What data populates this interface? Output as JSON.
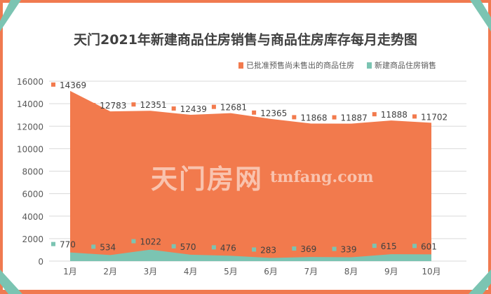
{
  "colors": {
    "orange": "#F27A4D",
    "green": "#7BC4B2",
    "border": "#F07A50",
    "grid": "#D9D9D9",
    "text": "#404040"
  },
  "chart_data": {
    "type": "area",
    "stacked": true,
    "title": "天门2021年新建商品住房销售与商品住房库存每月走势图",
    "categories": [
      "1月",
      "2月",
      "3月",
      "4月",
      "5月",
      "6月",
      "7月",
      "8月",
      "9月",
      "10月"
    ],
    "series": [
      {
        "name": "新建商品住房销售",
        "values": [
          770,
          534,
          1022,
          570,
          476,
          283,
          369,
          339,
          615,
          601
        ]
      },
      {
        "name": "已批准预售尚未售出的商品住房",
        "values": [
          14369,
          12783,
          12351,
          12439,
          12681,
          12365,
          11868,
          11887,
          11888,
          11702
        ]
      }
    ],
    "ylim": [
      0,
      16000
    ],
    "yticks": [
      "0",
      "2000",
      "4000",
      "6000",
      "8000",
      "10000",
      "12000",
      "14000",
      "16000"
    ],
    "grid": true,
    "legend": "top-right"
  },
  "watermark": {
    "cn": "天门房网",
    "en": "tmfang.com"
  }
}
